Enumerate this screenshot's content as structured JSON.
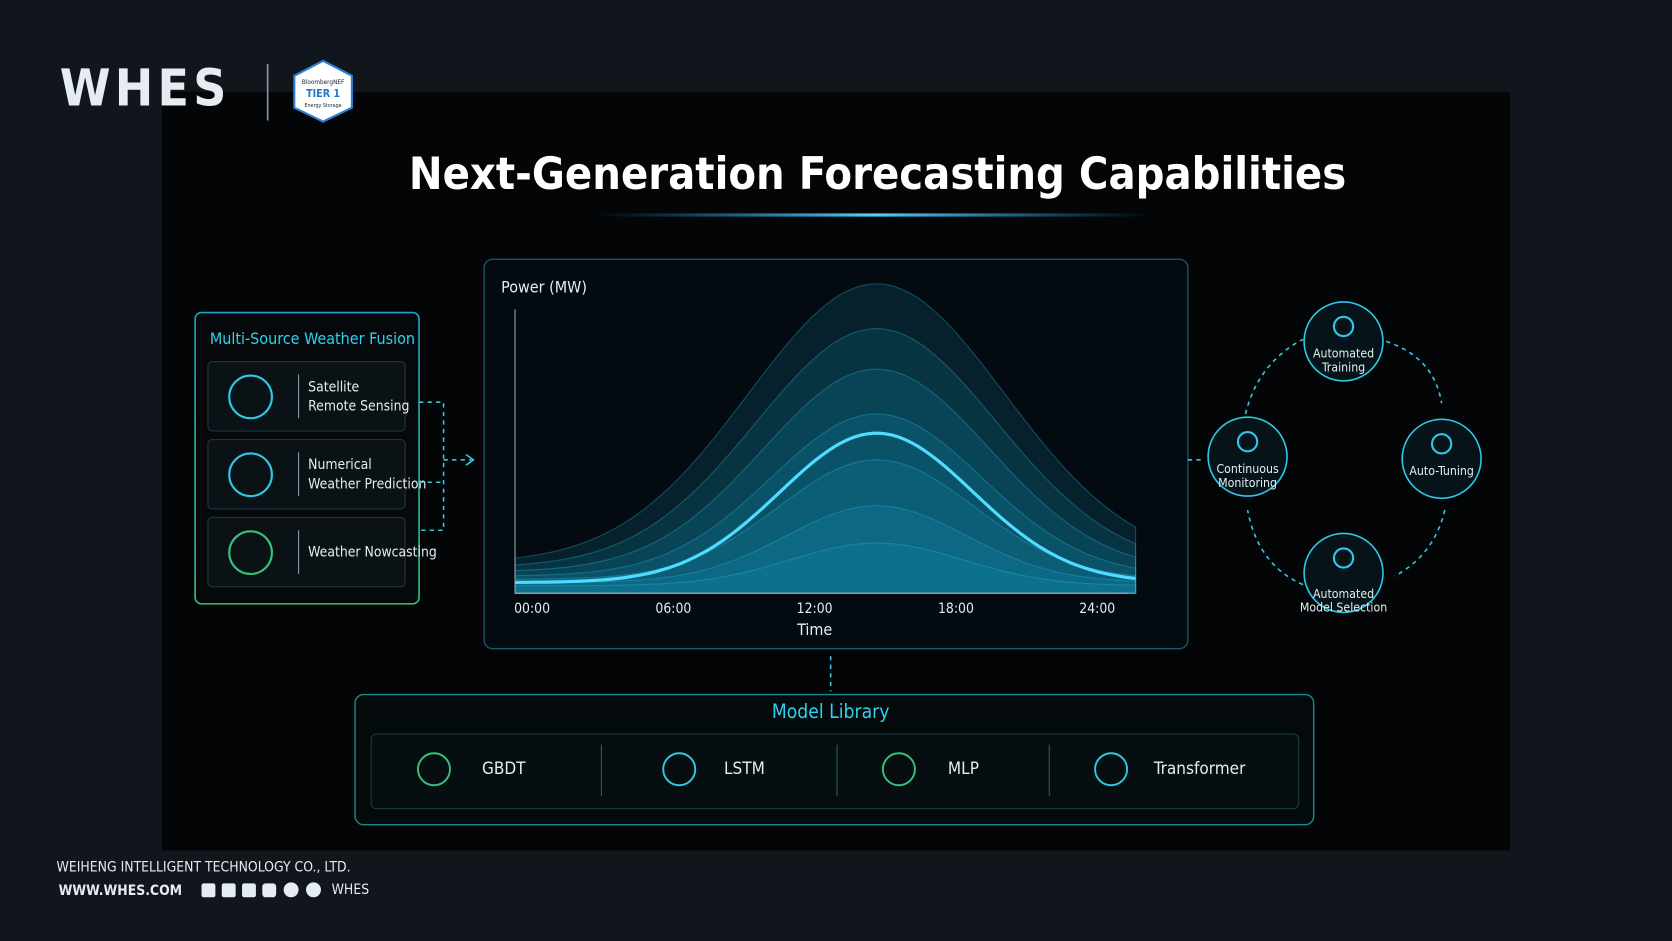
{
  "header": {
    "logo": "WHES",
    "badge": [
      "BloombergNEF",
      "TIER 1",
      "Energy Storage"
    ]
  },
  "title": "Next-Generation Forecasting Capabilities",
  "weather_fusion": {
    "title": "Multi-Source Weather Fusion",
    "items": [
      [
        "Satellite",
        "Remote Sensing"
      ],
      [
        "Numerical",
        "Weather Prediction"
      ],
      [
        "Weather Nowcasting"
      ]
    ]
  },
  "forecast_chart": {
    "y_label": "Power (MW)",
    "x_label": "Time",
    "x_ticks": [
      "00:00",
      "06:00",
      "12:00",
      "18:00",
      "24:00"
    ]
  },
  "cycle": {
    "steps": [
      [
        "Automated",
        "Training"
      ],
      [
        "Auto-Tuning"
      ],
      [
        "Automated",
        "Model Selection"
      ],
      [
        "Continuous",
        "Monitoring"
      ]
    ]
  },
  "model_library": {
    "title": "Model Library",
    "models": [
      "GBDT",
      "LSTM",
      "MLP",
      "Transformer"
    ]
  },
  "footer": {
    "company": "WEIHENG INTELLIGENT TECHNOLOGY CO., LTD.",
    "website": "WWW.WHES.COM",
    "handle": "WHES"
  }
}
